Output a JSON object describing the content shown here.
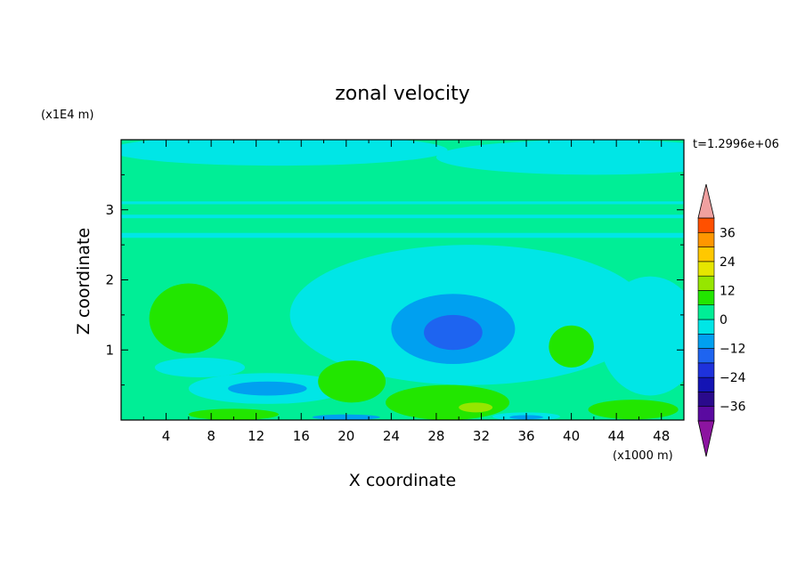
{
  "chart_data": {
    "type": "heatmap",
    "title": "zonal velocity",
    "xlabel": "X coordinate",
    "ylabel": "Z coordinate",
    "x_unit": "(x1000 m)",
    "y_unit": "(x1E4 m)",
    "time_label": "t=1.2996e+06",
    "xlim": [
      0,
      50
    ],
    "ylim": [
      0,
      4
    ],
    "x_ticks": [
      4,
      8,
      12,
      16,
      20,
      24,
      28,
      32,
      36,
      40,
      44,
      48
    ],
    "y_ticks": [
      1,
      2,
      3
    ],
    "colorbar": {
      "levels": [
        -42,
        -36,
        -30,
        -24,
        -18,
        -12,
        -6,
        0,
        6,
        12,
        18,
        24,
        30,
        36,
        42
      ],
      "colors": [
        "#5a0aa0",
        "#2a0a8c",
        "#1414b4",
        "#1e32dc",
        "#1e64f0",
        "#00a0f0",
        "#00e6e6",
        "#00ee96",
        "#22e600",
        "#96e600",
        "#e6e600",
        "#ffc800",
        "#ff9600",
        "#ff5000",
        "#ff1e1e"
      ],
      "under_color": "#8c14a0",
      "over_color": "#f0a0a0",
      "tick_labels": [
        {
          "value": 36,
          "label": "36"
        },
        {
          "value": 24,
          "label": "24"
        },
        {
          "value": 12,
          "label": "12"
        },
        {
          "value": 0,
          "label": "0"
        },
        {
          "value": -12,
          "label": "−12"
        },
        {
          "value": -24,
          "label": "−24"
        },
        {
          "value": -36,
          "label": "−36"
        }
      ]
    },
    "background_value": 3,
    "features": [
      {
        "kind": "ellipse",
        "value": 3,
        "cx": 24,
        "cy": 3.55,
        "rx": 26,
        "ry": 0.5
      },
      {
        "kind": "ellipse",
        "value": -3,
        "cx": 14,
        "cy": 3.85,
        "rx": 15,
        "ry": 0.22
      },
      {
        "kind": "ellipse",
        "value": -3,
        "cx": 42,
        "cy": 3.75,
        "rx": 14,
        "ry": 0.25
      },
      {
        "kind": "rect",
        "value": -3,
        "x0": 0,
        "x1": 50,
        "z0": 2.6,
        "z1": 2.67
      },
      {
        "kind": "rect",
        "value": -3,
        "x0": 0,
        "x1": 50,
        "z0": 2.88,
        "z1": 2.93
      },
      {
        "kind": "rect",
        "value": -3,
        "x0": 0,
        "x1": 50,
        "z0": 3.08,
        "z1": 3.12
      },
      {
        "kind": "ellipse",
        "value": -3,
        "cx": 31,
        "cy": 1.5,
        "rx": 16,
        "ry": 1.0
      },
      {
        "kind": "ellipse",
        "value": -3,
        "cx": 47,
        "cy": 1.2,
        "rx": 4.5,
        "ry": 0.85
      },
      {
        "kind": "ellipse",
        "value": -9,
        "cx": 29.5,
        "cy": 1.3,
        "rx": 5.5,
        "ry": 0.5
      },
      {
        "kind": "ellipse",
        "value": -15,
        "cx": 29.5,
        "cy": 1.25,
        "rx": 2.6,
        "ry": 0.25
      },
      {
        "kind": "ellipse",
        "value": -3,
        "cx": 13,
        "cy": 0.45,
        "rx": 7,
        "ry": 0.22
      },
      {
        "kind": "ellipse",
        "value": -9,
        "cx": 13,
        "cy": 0.45,
        "rx": 3.5,
        "ry": 0.1
      },
      {
        "kind": "ellipse",
        "value": -3,
        "cx": 7,
        "cy": 0.75,
        "rx": 4,
        "ry": 0.14
      },
      {
        "kind": "ellipse",
        "value": 9,
        "cx": 6,
        "cy": 1.45,
        "rx": 3.5,
        "ry": 0.5
      },
      {
        "kind": "ellipse",
        "value": 9,
        "cx": 40,
        "cy": 1.05,
        "rx": 2,
        "ry": 0.3
      },
      {
        "kind": "ellipse",
        "value": 9,
        "cx": 20.5,
        "cy": 0.55,
        "rx": 3,
        "ry": 0.3
      },
      {
        "kind": "ellipse",
        "value": 9,
        "cx": 29,
        "cy": 0.25,
        "rx": 5.5,
        "ry": 0.25
      },
      {
        "kind": "ellipse",
        "value": 9,
        "cx": 45.5,
        "cy": 0.15,
        "rx": 4,
        "ry": 0.14
      },
      {
        "kind": "ellipse",
        "value": 9,
        "cx": 10,
        "cy": 0.08,
        "rx": 4,
        "ry": 0.08
      },
      {
        "kind": "ellipse",
        "value": 15,
        "cx": 31.5,
        "cy": 0.18,
        "rx": 1.5,
        "ry": 0.07
      },
      {
        "kind": "ellipse",
        "value": -3,
        "cx": 36,
        "cy": 0.05,
        "rx": 3,
        "ry": 0.06
      },
      {
        "kind": "ellipse",
        "value": -9,
        "cx": 36,
        "cy": 0.04,
        "rx": 1.5,
        "ry": 0.03
      },
      {
        "kind": "ellipse",
        "value": -9,
        "cx": 20,
        "cy": 0.04,
        "rx": 3,
        "ry": 0.04
      }
    ]
  }
}
